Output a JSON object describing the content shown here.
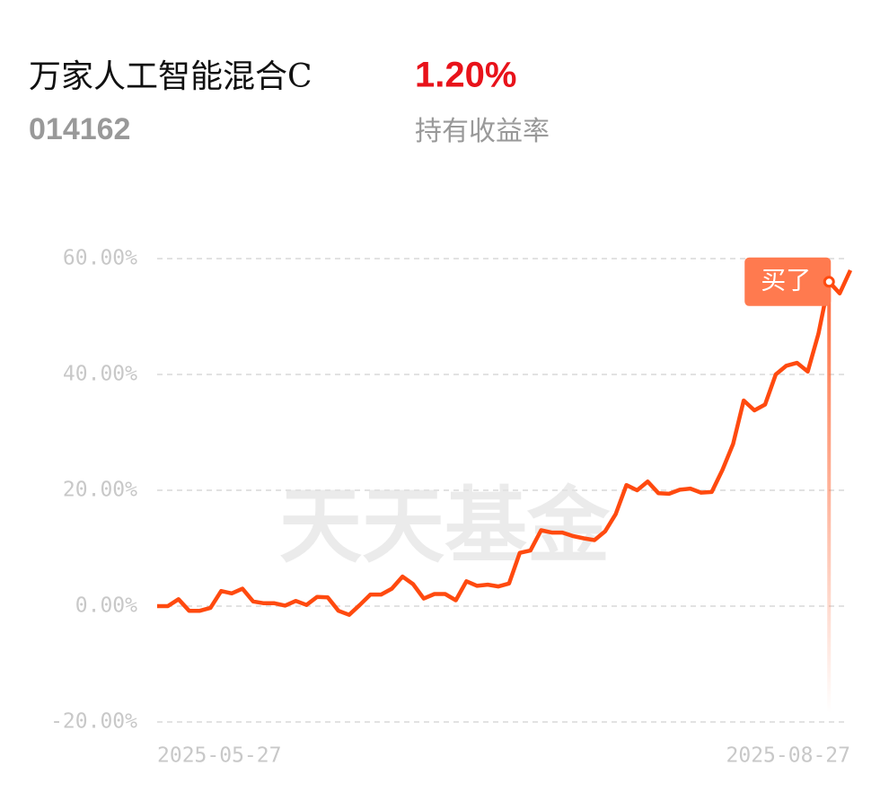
{
  "header": {
    "title": "万家人工智能混合C",
    "return": "1.20%",
    "code": "014162",
    "return_label": "持有收益率"
  },
  "chart_data": {
    "type": "line",
    "watermark": "天天基金",
    "categories": [
      "2025-05-27",
      null,
      null,
      null,
      null,
      null,
      null,
      null,
      null,
      null,
      null,
      null,
      null,
      null,
      null,
      null,
      null,
      null,
      null,
      null,
      null,
      null,
      null,
      null,
      null,
      null,
      null,
      null,
      null,
      null,
      null,
      null,
      null,
      null,
      null,
      null,
      null,
      null,
      null,
      null,
      null,
      null,
      null,
      null,
      null,
      null,
      null,
      null,
      null,
      null,
      null,
      null,
      null,
      null,
      null,
      null,
      null,
      null,
      null,
      null,
      null,
      null,
      null,
      null,
      null,
      "2025-08-27"
    ],
    "values": [
      0,
      0,
      1.2,
      -0.8,
      -0.8,
      -0.3,
      2.6,
      2.2,
      3,
      0.8,
      0.5,
      0.5,
      0.1,
      0.9,
      0.2,
      1.6,
      1.5,
      -0.8,
      -1.5,
      0.2,
      2,
      2,
      3,
      5.1,
      3.8,
      1.3,
      2.1,
      2.1,
      1,
      4.3,
      3.5,
      3.7,
      3.4,
      3.9,
      9.2,
      9.6,
      13.1,
      12.7,
      12.7,
      12.1,
      11.7,
      11.4,
      12.9,
      15.9,
      20.9,
      20,
      21.5,
      19.5,
      19.4,
      20.1,
      20.3,
      19.6,
      19.7,
      23.5,
      28,
      35.5,
      33.8,
      34.8,
      40,
      41.5,
      42,
      40.5,
      47,
      56,
      54,
      58
    ],
    "color": "#ff4a0f",
    "ylim": [
      -20,
      60
    ],
    "yticks": [
      {
        "value": -20,
        "label": "-20.00%"
      },
      {
        "value": 0,
        "label": "0.00%"
      },
      {
        "value": 20,
        "label": "20.00%"
      },
      {
        "value": 40,
        "label": "40.00%"
      },
      {
        "value": 60,
        "label": "60.00%"
      }
    ],
    "grid": true,
    "annotation": {
      "text": "买了",
      "index": 63
    }
  }
}
